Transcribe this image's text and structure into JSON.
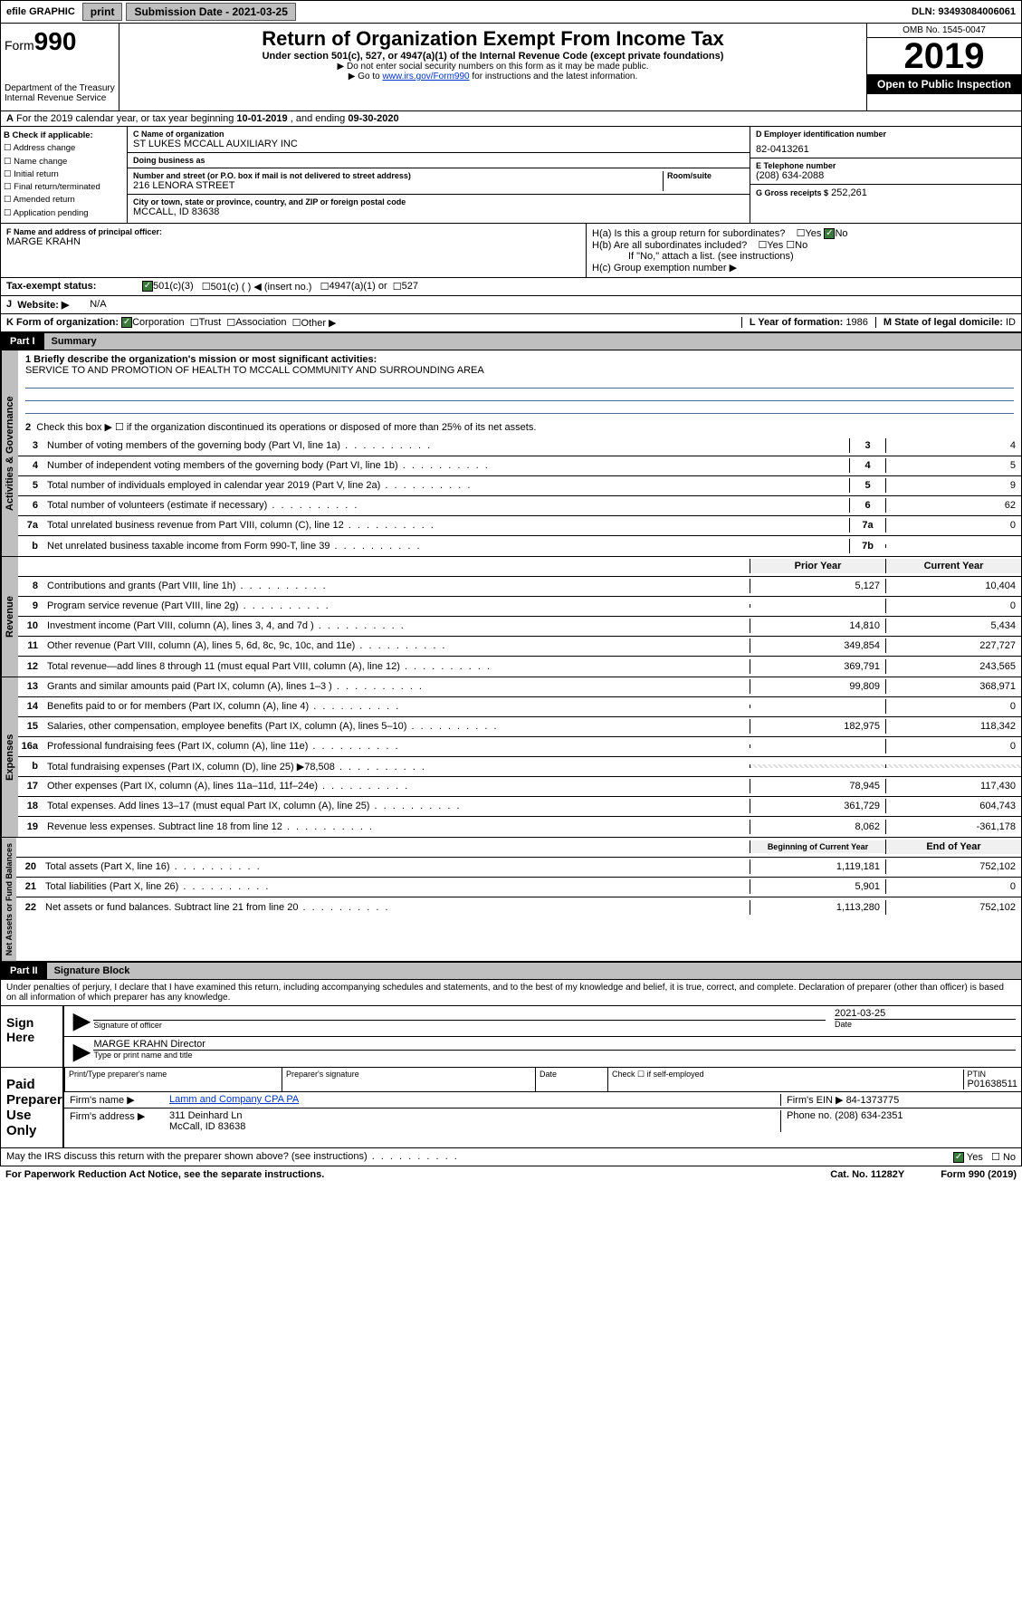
{
  "topbar": {
    "efile": "efile GRAPHIC",
    "print": "print",
    "submission_label": "Submission Date - 2021-03-25",
    "dln_label": "DLN: 93493084006061"
  },
  "header": {
    "form_prefix": "Form",
    "form_number": "990",
    "dept": "Department of the Treasury\nInternal Revenue Service",
    "title": "Return of Organization Exempt From Income Tax",
    "subtitle": "Under section 501(c), 527, or 4947(a)(1) of the Internal Revenue Code (except private foundations)",
    "arrow1": "▶ Do not enter social security numbers on this form as it may be made public.",
    "arrow2_pre": "▶ Go to ",
    "arrow2_link": "www.irs.gov/Form990",
    "arrow2_post": " for instructions and the latest information.",
    "omb": "OMB No. 1545-0047",
    "year": "2019",
    "inspection": "Open to Public Inspection"
  },
  "rowA": {
    "prefix": "A",
    "text": "For the 2019 calendar year, or tax year beginning ",
    "begin": "10-01-2019",
    "mid": " , and ending ",
    "end": "09-30-2020"
  },
  "B": {
    "header": "B Check if applicable:",
    "opts": [
      "Address change",
      "Name change",
      "Initial return",
      "Final return/terminated",
      "Amended return",
      "Application pending"
    ]
  },
  "C": {
    "name_label": "C Name of organization",
    "name": "ST LUKES MCCALL AUXILIARY INC",
    "dba_label": "Doing business as",
    "dba": "",
    "addr_label": "Number and street (or P.O. box if mail is not delivered to street address)",
    "room_label": "Room/suite",
    "addr": "216 LENORA STREET",
    "city_label": "City or town, state or province, country, and ZIP or foreign postal code",
    "city": "MCCALL, ID  83638"
  },
  "D": {
    "label": "D Employer identification number",
    "value": "82-0413261"
  },
  "E": {
    "label": "E Telephone number",
    "value": "(208) 634-2088"
  },
  "G": {
    "label": "G Gross receipts $",
    "value": "252,261"
  },
  "F": {
    "label": "F  Name and address of principal officer:",
    "value": "MARGE KRAHN"
  },
  "H": {
    "a": "H(a)  Is this a group return for subordinates?",
    "b": "H(b)  Are all subordinates included?",
    "b_note": "If \"No,\" attach a list. (see instructions)",
    "c": "H(c)  Group exemption number ▶"
  },
  "I": {
    "label": "Tax-exempt status:",
    "opts": [
      "501(c)(3)",
      "501(c) (  ) ◀ (insert no.)",
      "4947(a)(1) or",
      "527"
    ]
  },
  "J": {
    "label": "Website: ▶",
    "value": "N/A"
  },
  "K": {
    "label": "K Form of organization:",
    "opts": [
      "Corporation",
      "Trust",
      "Association",
      "Other ▶"
    ]
  },
  "L": {
    "label": "L Year of formation:",
    "value": "1986"
  },
  "M": {
    "label": "M State of legal domicile:",
    "value": "ID"
  },
  "part1": {
    "num": "Part I",
    "title": "Summary",
    "tabs": [
      "Activities & Governance",
      "Revenue",
      "Expenses",
      "Net Assets or Fund Balances"
    ],
    "q1_label": "1  Briefly describe the organization's mission or most significant activities:",
    "q1_text": "SERVICE TO AND PROMOTION OF HEALTH TO MCCALL COMMUNITY AND SURROUNDING AREA",
    "q2": "Check this box ▶ ☐  if the organization discontinued its operations or disposed of more than 25% of its net assets.",
    "rows_gov": [
      {
        "n": "3",
        "d": "Number of voting members of the governing body (Part VI, line 1a)",
        "c": "3",
        "v": "4"
      },
      {
        "n": "4",
        "d": "Number of independent voting members of the governing body (Part VI, line 1b)",
        "c": "4",
        "v": "5"
      },
      {
        "n": "5",
        "d": "Total number of individuals employed in calendar year 2019 (Part V, line 2a)",
        "c": "5",
        "v": "9"
      },
      {
        "n": "6",
        "d": "Total number of volunteers (estimate if necessary)",
        "c": "6",
        "v": "62"
      },
      {
        "n": "7a",
        "d": "Total unrelated business revenue from Part VIII, column (C), line 12",
        "c": "7a",
        "v": "0"
      },
      {
        "n": "b",
        "d": "Net unrelated business taxable income from Form 990-T, line 39",
        "c": "7b",
        "v": ""
      }
    ],
    "col_hdr_prior": "Prior Year",
    "col_hdr_curr": "Current Year",
    "rows_rev": [
      {
        "n": "8",
        "d": "Contributions and grants (Part VIII, line 1h)",
        "p": "5,127",
        "c": "10,404"
      },
      {
        "n": "9",
        "d": "Program service revenue (Part VIII, line 2g)",
        "p": "",
        "c": "0"
      },
      {
        "n": "10",
        "d": "Investment income (Part VIII, column (A), lines 3, 4, and 7d )",
        "p": "14,810",
        "c": "5,434"
      },
      {
        "n": "11",
        "d": "Other revenue (Part VIII, column (A), lines 5, 6d, 8c, 9c, 10c, and 11e)",
        "p": "349,854",
        "c": "227,727"
      },
      {
        "n": "12",
        "d": "Total revenue—add lines 8 through 11 (must equal Part VIII, column (A), line 12)",
        "p": "369,791",
        "c": "243,565"
      }
    ],
    "rows_exp": [
      {
        "n": "13",
        "d": "Grants and similar amounts paid (Part IX, column (A), lines 1–3 )",
        "p": "99,809",
        "c": "368,971"
      },
      {
        "n": "14",
        "d": "Benefits paid to or for members (Part IX, column (A), line 4)",
        "p": "",
        "c": "0"
      },
      {
        "n": "15",
        "d": "Salaries, other compensation, employee benefits (Part IX, column (A), lines 5–10)",
        "p": "182,975",
        "c": "118,342"
      },
      {
        "n": "16a",
        "d": "Professional fundraising fees (Part IX, column (A), line 11e)",
        "p": "",
        "c": "0"
      },
      {
        "n": "b",
        "d": "Total fundraising expenses (Part IX, column (D), line 25) ▶78,508",
        "p": "HATCH",
        "c": "HATCH"
      },
      {
        "n": "17",
        "d": "Other expenses (Part IX, column (A), lines 11a–11d, 11f–24e)",
        "p": "78,945",
        "c": "117,430"
      },
      {
        "n": "18",
        "d": "Total expenses. Add lines 13–17 (must equal Part IX, column (A), line 25)",
        "p": "361,729",
        "c": "604,743"
      },
      {
        "n": "19",
        "d": "Revenue less expenses. Subtract line 18 from line 12",
        "p": "8,062",
        "c": "-361,178"
      }
    ],
    "col_hdr_beg": "Beginning of Current Year",
    "col_hdr_end": "End of Year",
    "rows_net": [
      {
        "n": "20",
        "d": "Total assets (Part X, line 16)",
        "p": "1,119,181",
        "c": "752,102"
      },
      {
        "n": "21",
        "d": "Total liabilities (Part X, line 26)",
        "p": "5,901",
        "c": "0"
      },
      {
        "n": "22",
        "d": "Net assets or fund balances. Subtract line 21 from line 20",
        "p": "1,113,280",
        "c": "752,102"
      }
    ]
  },
  "part2": {
    "num": "Part II",
    "title": "Signature Block",
    "decl": "Under penalties of perjury, I declare that I have examined this return, including accompanying schedules and statements, and to the best of my knowledge and belief, it is true, correct, and complete. Declaration of preparer (other than officer) is based on all information of which preparer has any knowledge.",
    "sign_here": "Sign Here",
    "sig_officer": "Signature of officer",
    "sig_date": "2021-03-25",
    "date_label": "Date",
    "officer_name": "MARGE KRAHN Director",
    "type_name": "Type or print name and title",
    "paid": "Paid Preparer Use Only",
    "prep_name_label": "Print/Type preparer's name",
    "prep_sig_label": "Preparer's signature",
    "prep_date_label": "Date",
    "self_emp": "Check ☐ if self-employed",
    "ptin_label": "PTIN",
    "ptin": "P01638511",
    "firm_name_label": "Firm's name      ▶",
    "firm_name": "Lamm and Company CPA PA",
    "firm_ein_label": "Firm's EIN ▶",
    "firm_ein": "84-1373775",
    "firm_addr_label": "Firm's address ▶",
    "firm_addr": "311 Deinhard Ln",
    "firm_city": "McCall, ID  83638",
    "phone_label": "Phone no.",
    "phone": "(208) 634-2351",
    "may_discuss": "May the IRS discuss this return with the preparer shown above? (see instructions)",
    "yes": "Yes",
    "no": "No"
  },
  "footer": {
    "pra": "For Paperwork Reduction Act Notice, see the separate instructions.",
    "cat": "Cat. No. 11282Y",
    "form": "Form 990 (2019)"
  },
  "colors": {
    "link": "#0033cc",
    "underline": "#4a6a9a",
    "black": "#000000",
    "gray_btn": "#bfbfbf",
    "check_green": "#3a7a3a"
  }
}
